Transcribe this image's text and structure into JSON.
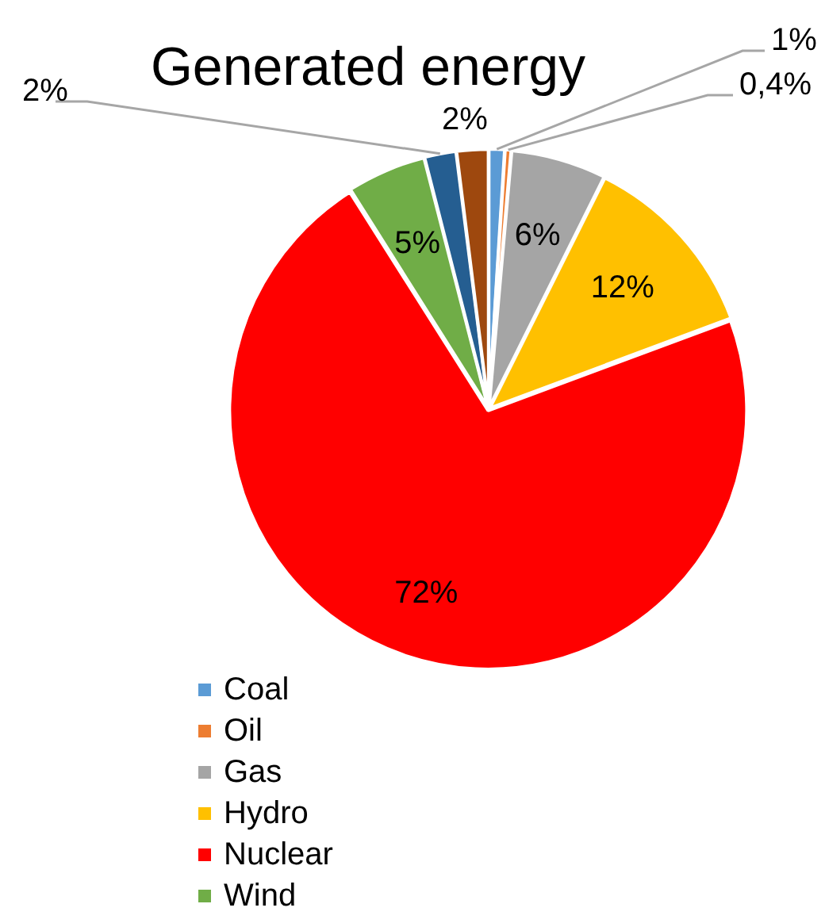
{
  "chart_data": {
    "type": "pie",
    "title": "Generated energy",
    "categories": [
      "Coal",
      "Oil",
      "Gas",
      "Hydro",
      "Nuclear",
      "Wind",
      null,
      null
    ],
    "values": [
      1,
      0.4,
      6,
      12,
      72,
      5,
      2,
      2
    ],
    "colors": [
      "#5b9bd5",
      "#ed7d31",
      "#a5a5a5",
      "#ffc000",
      "#ff0000",
      "#70ad47",
      "#255e91",
      "#9e480e"
    ],
    "value_labels": [
      "1%",
      "0,4%",
      "6%",
      "12%",
      "72%",
      "5%",
      "2%",
      "2%"
    ],
    "legend": "bottom"
  }
}
